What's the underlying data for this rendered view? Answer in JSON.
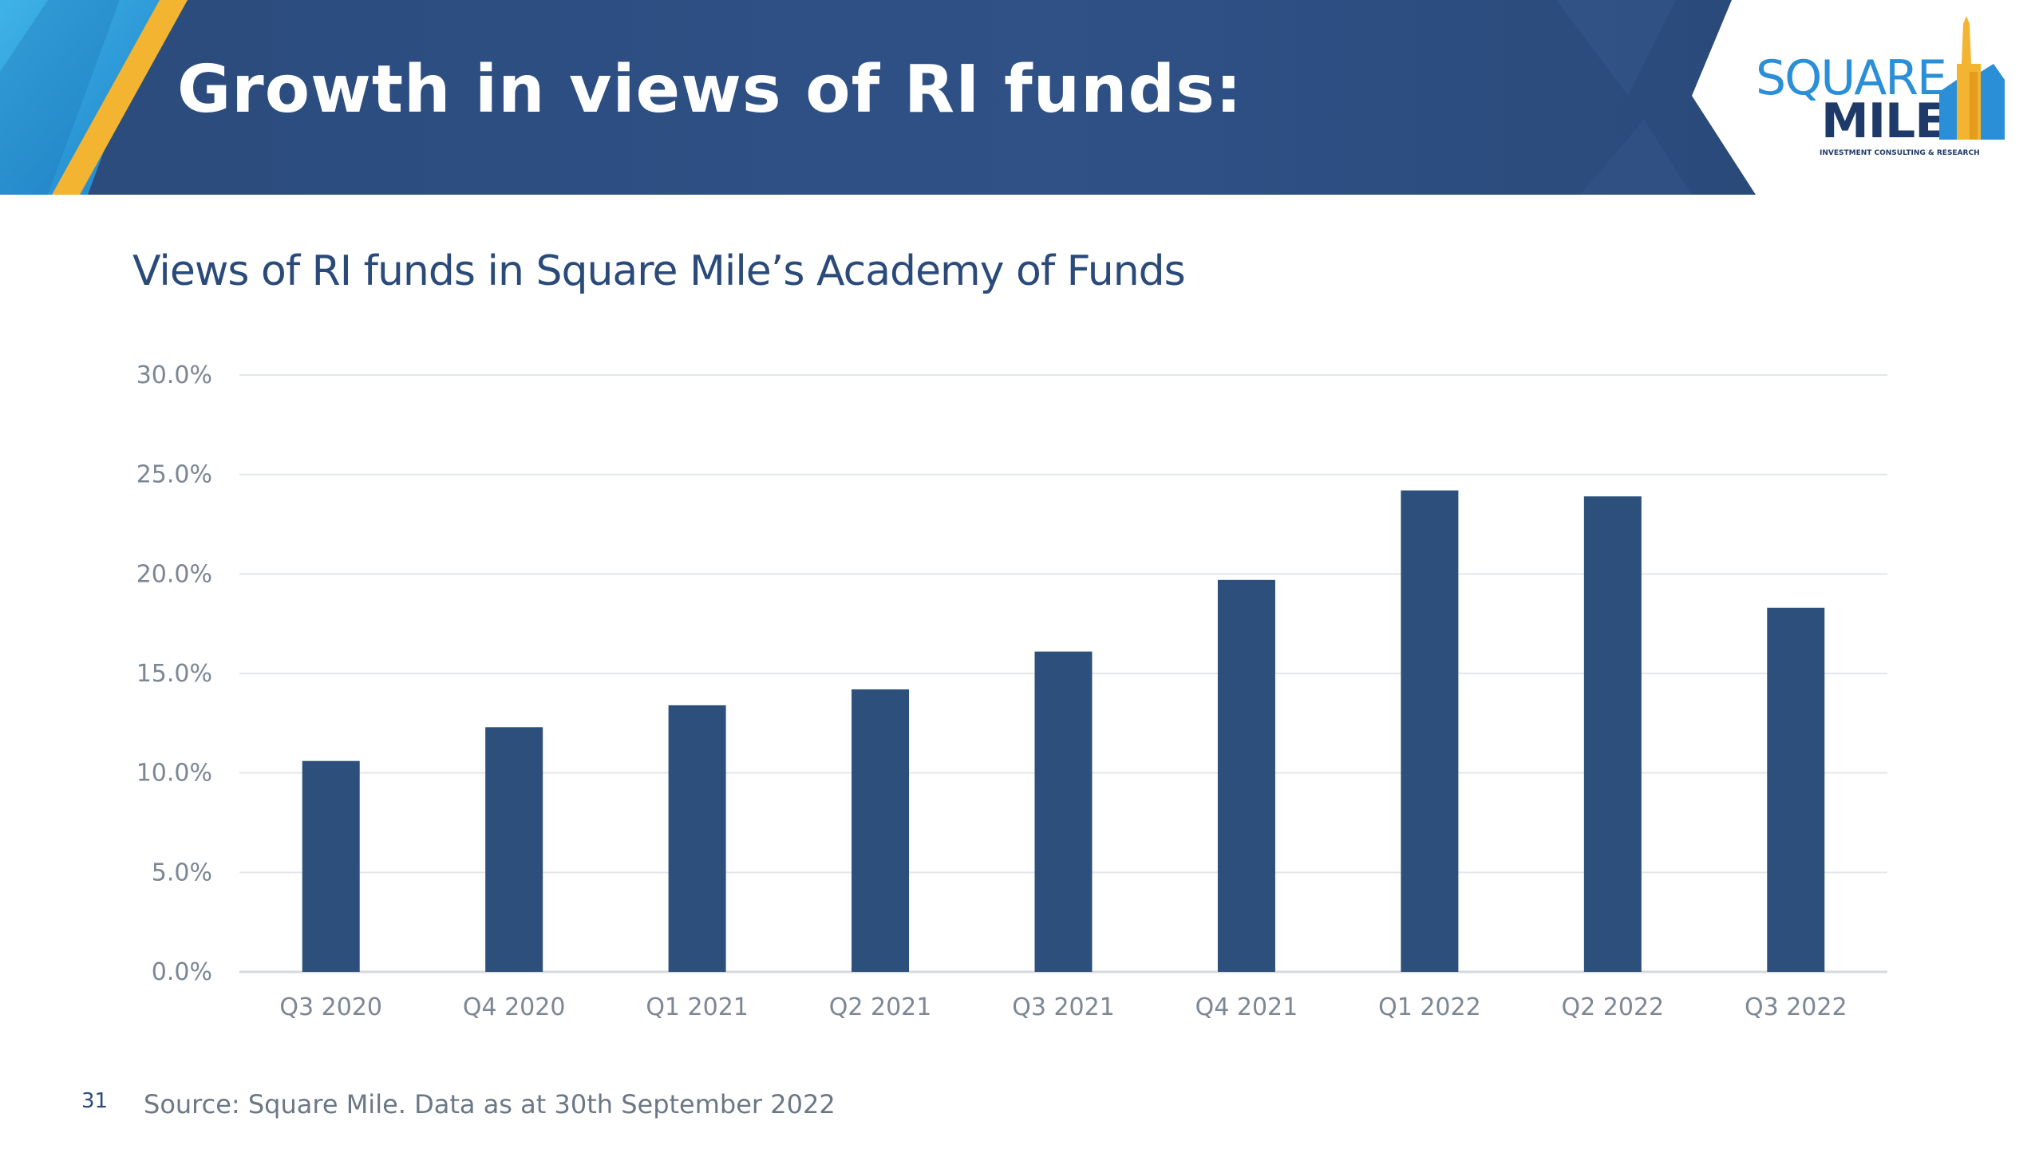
{
  "slide": {
    "title": "Growth in views of RI funds:",
    "page_number": "31",
    "source": "Source: Square Mile. Data as at 30th September 2022"
  },
  "logo": {
    "line1": "SQUARE",
    "line2": "MILE",
    "tagline": "INVESTMENT CONSULTING & RESEARCH"
  },
  "colors": {
    "banner": "#2e5082",
    "bar": "#2d4f7c",
    "accent_gold": "#f2b431",
    "accent_blue": "#2a8fd6",
    "gridline": "#e3e6ea"
  },
  "chart_data": {
    "type": "bar",
    "title": "Views of RI funds in Square Mile’s Academy of Funds",
    "xlabel": "",
    "ylabel": "",
    "categories": [
      "Q3 2020",
      "Q4 2020",
      "Q1 2021",
      "Q2 2021",
      "Q3 2021",
      "Q4 2021",
      "Q1 2022",
      "Q2 2022",
      "Q3 2022"
    ],
    "values": [
      10.6,
      12.3,
      13.4,
      14.2,
      16.1,
      19.7,
      24.2,
      23.9,
      18.3
    ],
    "y_ticks": [
      "0.0%",
      "5.0%",
      "10.0%",
      "15.0%",
      "20.0%",
      "25.0%",
      "30.0%"
    ],
    "ylim": [
      0,
      30
    ],
    "grid": true,
    "legend": "none"
  }
}
